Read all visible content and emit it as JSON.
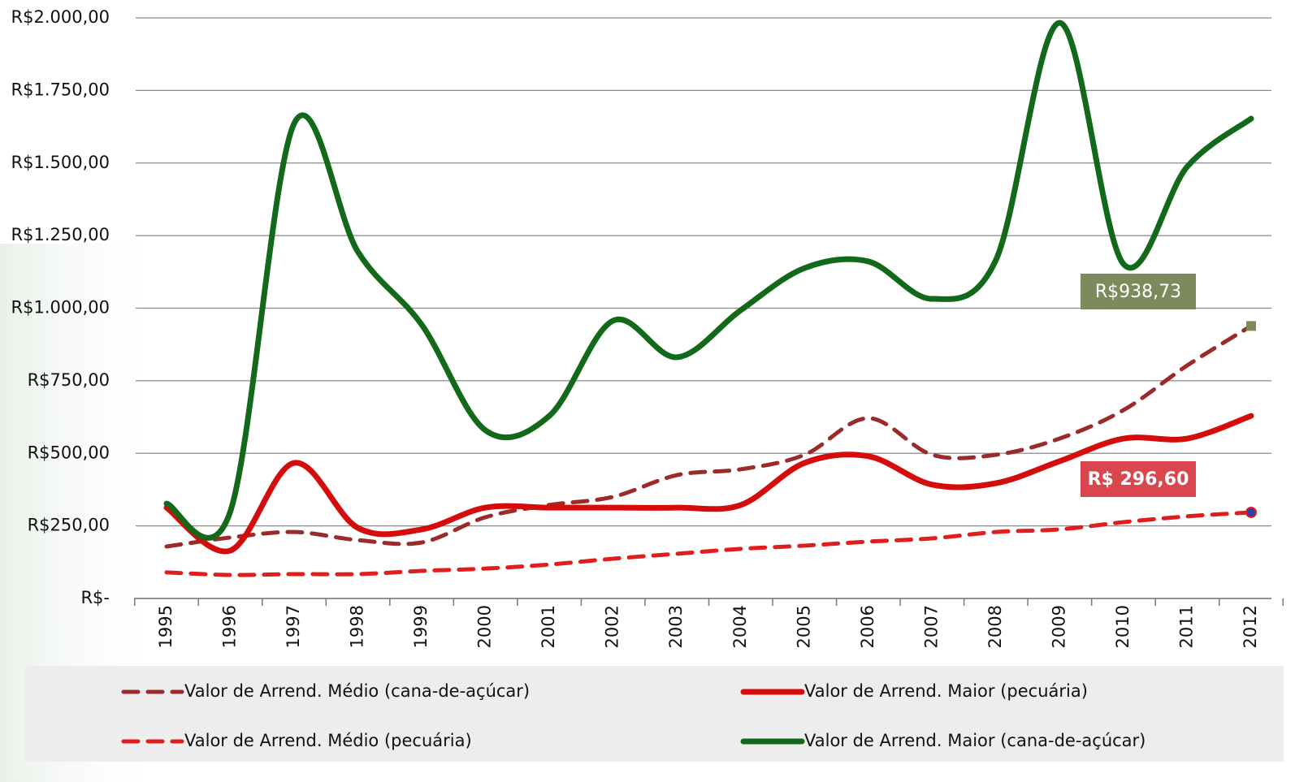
{
  "chart_data": {
    "type": "line",
    "categories": [
      "1995",
      "1996",
      "1997",
      "1998",
      "1999",
      "2000",
      "2001",
      "2002",
      "2003",
      "2004",
      "2005",
      "2006",
      "2007",
      "2008",
      "2009",
      "2010",
      "2011",
      "2012"
    ],
    "ylim": [
      0,
      2000
    ],
    "yticks": [
      {
        "value": 0,
        "label": "R$-"
      },
      {
        "value": 250,
        "label": "R$250,00"
      },
      {
        "value": 500,
        "label": "R$500,00"
      },
      {
        "value": 750,
        "label": "R$750,00"
      },
      {
        "value": 1000,
        "label": "R$1.000,00"
      },
      {
        "value": 1250,
        "label": "R$1.250,00"
      },
      {
        "value": 1500,
        "label": "R$1.500,00"
      },
      {
        "value": 1750,
        "label": "R$1.750,00"
      },
      {
        "value": 2000,
        "label": "R$2.000,00"
      }
    ],
    "grid": true,
    "legend": "bottom",
    "series": [
      {
        "name": "Valor de Arrend. Médio (cana-de-açúcar)",
        "color": "#9b2b2b",
        "style": "dashed",
        "values": [
          179,
          210,
          229,
          201,
          193,
          280,
          322,
          350,
          425,
          445,
          495,
          621,
          495,
          495,
          551,
          649,
          803,
          938.73
        ],
        "value_labels": [
          null,
          null,
          null,
          null,
          null,
          null,
          null,
          null,
          null,
          null,
          null,
          null,
          null,
          null,
          null,
          null,
          null,
          "R$938,73"
        ],
        "label_color": "#7f8a5c"
      },
      {
        "name": "Valor de Arrend. Maior (pecuária)",
        "color": "#d40c0c",
        "style": "solid",
        "values": [
          313,
          165,
          467,
          243,
          238,
          313,
          313,
          313,
          313,
          322,
          467,
          490,
          392,
          397,
          473,
          551,
          551,
          629
        ]
      },
      {
        "name": "Valor de Arrend. Médio (pecuária)",
        "color": "#e01e1e",
        "style": "dashed",
        "values": [
          90,
          81,
          84,
          84,
          95,
          103,
          117,
          137,
          154,
          171,
          182,
          196,
          207,
          229,
          238,
          263,
          283,
          296.6
        ],
        "value_labels": [
          null,
          null,
          null,
          null,
          null,
          null,
          null,
          null,
          null,
          null,
          null,
          null,
          null,
          null,
          null,
          null,
          null,
          "R$ 296,60"
        ],
        "label_color": "#d9464e"
      },
      {
        "name": "Valor de Arrend. Maior (cana-de-açúcar)",
        "color": "#13691a",
        "style": "solid",
        "values": [
          327,
          300,
          1636,
          1194,
          943,
          579,
          629,
          957,
          831,
          993,
          1138,
          1161,
          1032,
          1166,
          1983,
          1152,
          1488,
          1653
        ]
      }
    ]
  }
}
